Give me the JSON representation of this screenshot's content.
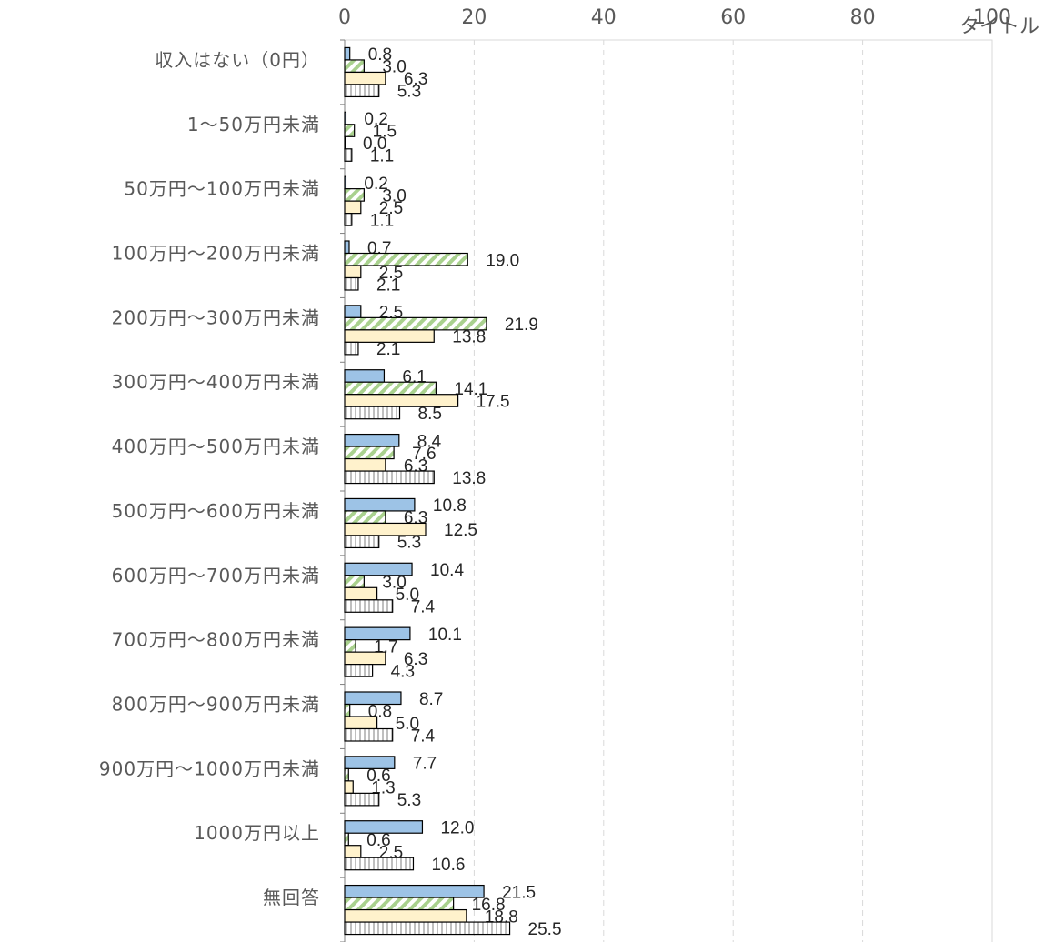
{
  "chart_data": {
    "type": "hbar",
    "xlabel": "タイトル",
    "categories": [
      "収入はない（0円）",
      "1～50万円未満",
      "50万円～100万円未満",
      "100万円～200万円未満",
      "200万円～300万円未満",
      "300万円～400万円未満",
      "400万円～500万円未満",
      "500万円～600万円未満",
      "600万円～700万円未満",
      "700万円～800万円未満",
      "800万円～900万円未満",
      "900万円～1000万円未満",
      "1000万円以上",
      "無回答"
    ],
    "series": [
      {
        "color": "#9dc3e6",
        "pattern": "solid",
        "values": [
          0.8,
          0.2,
          0.2,
          0.7,
          2.5,
          6.1,
          8.4,
          10.8,
          10.4,
          10.1,
          8.7,
          7.7,
          12.0,
          21.5
        ],
        "value_labels": [
          "0.8",
          "0.2",
          "0.2",
          "0.7",
          "2.5",
          "6.1",
          "8.4",
          "10.8",
          "10.4",
          "10.1",
          "8.7",
          "7.7",
          "12.0",
          "21.5"
        ]
      },
      {
        "color": "#a9d18e",
        "pattern": "diagonal",
        "values": [
          3.0,
          1.5,
          3.0,
          19.0,
          21.9,
          14.1,
          7.6,
          6.3,
          3.0,
          1.7,
          0.8,
          0.6,
          0.6,
          16.8
        ],
        "value_labels": [
          "3.0",
          "1.5",
          "3.0",
          "19.0",
          "21.9",
          "14.1",
          "7.6",
          "6.3",
          "3.0",
          "1.7",
          "0.8",
          "0.6",
          "0.6",
          "16.8"
        ]
      },
      {
        "color": "#fff2cc",
        "pattern": "solid",
        "values": [
          6.3,
          0.0,
          2.5,
          2.5,
          13.8,
          17.5,
          6.3,
          12.5,
          5.0,
          6.3,
          5.0,
          1.3,
          2.5,
          18.8
        ],
        "value_labels": [
          "6.3",
          "0.0",
          "2.5",
          "2.5",
          "13.8",
          "17.5",
          "6.3",
          "12.5",
          "5.0",
          "6.3",
          "5.0",
          "1.3",
          "2.5",
          "18.8"
        ]
      },
      {
        "color": "#bfbfbf",
        "pattern": "vertical",
        "values": [
          5.3,
          1.1,
          1.1,
          2.1,
          2.1,
          8.5,
          13.8,
          5.3,
          7.4,
          4.3,
          7.4,
          5.3,
          10.6,
          25.5
        ],
        "value_labels": [
          "5.3",
          "1.1",
          "1.1",
          "2.1",
          "2.1",
          "8.5",
          "13.8",
          "5.3",
          "7.4",
          "4.3",
          "7.4",
          "5.3",
          "10.6",
          "25.5"
        ]
      }
    ],
    "xlim": [
      0,
      100
    ],
    "xticks": [
      0,
      20,
      40,
      60,
      80,
      100
    ],
    "grid": true
  }
}
